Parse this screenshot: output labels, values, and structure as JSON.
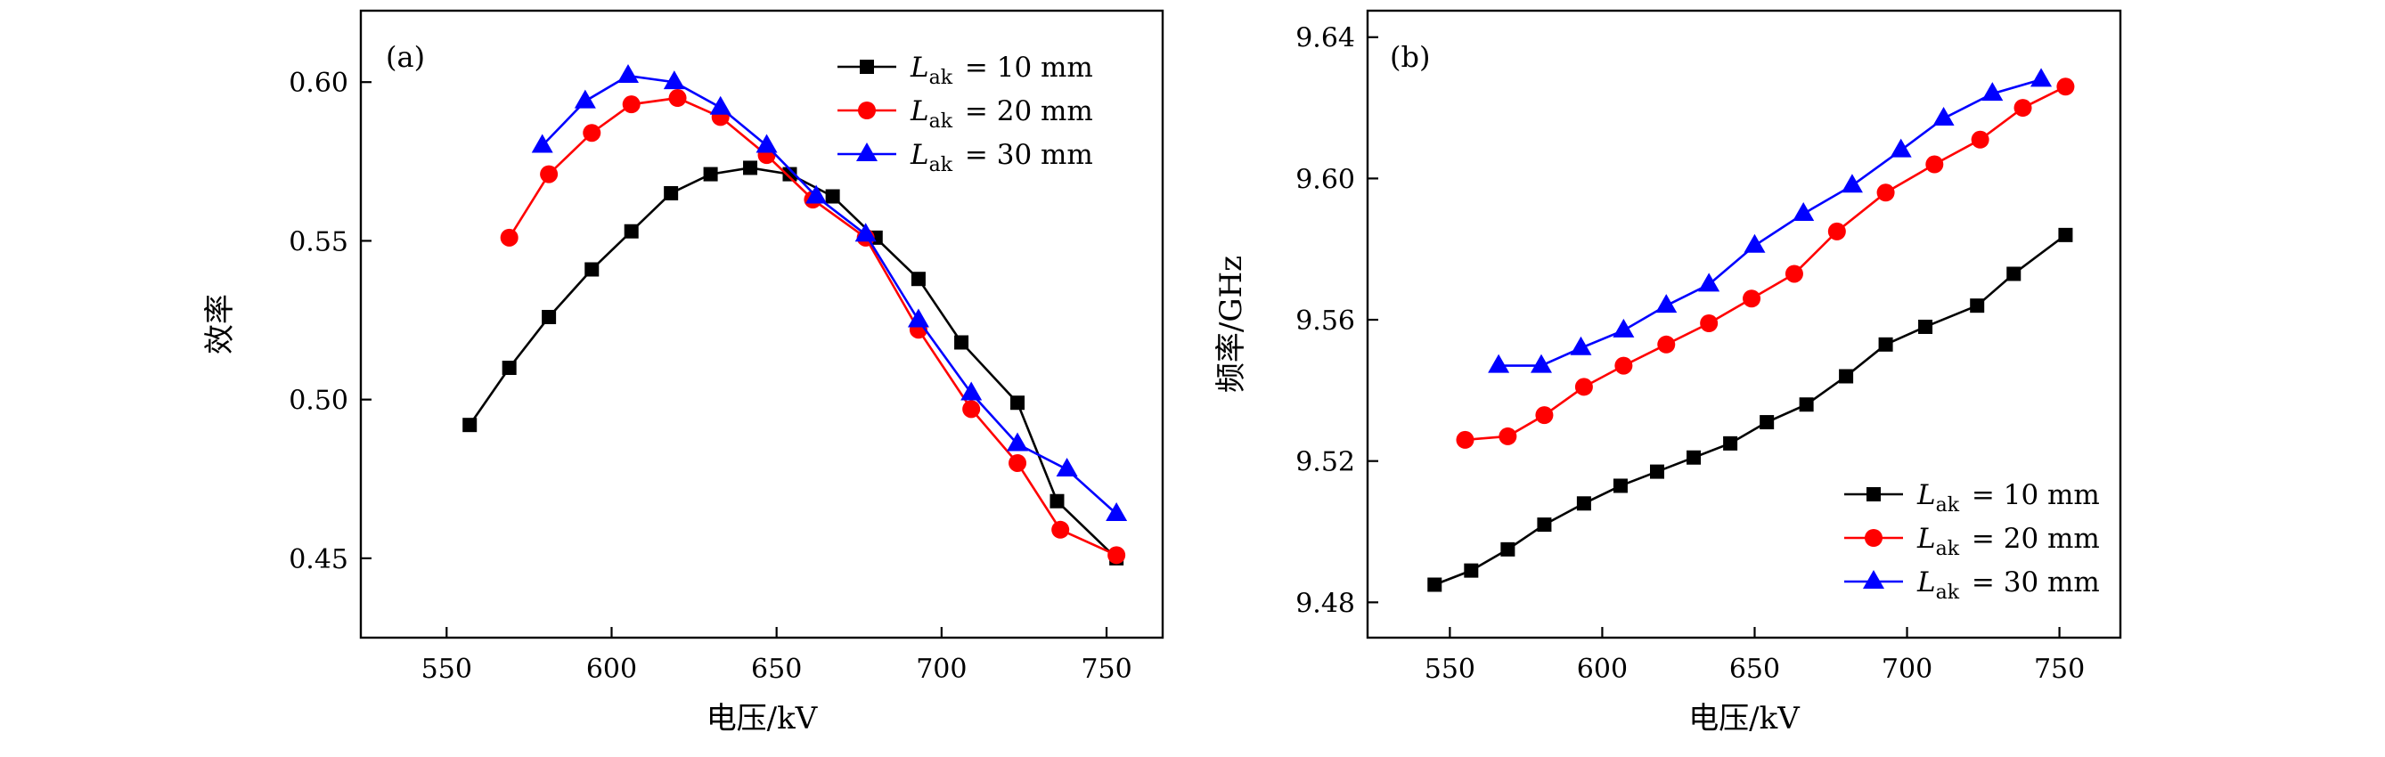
{
  "chart_data": [
    {
      "type": "line",
      "panel_tag": "(a)",
      "xlabel": "电压/kV",
      "ylabel": "效率",
      "xlim": [
        524,
        767
      ],
      "ylim": [
        0.425,
        0.6225
      ],
      "xticks": [
        550,
        600,
        650,
        700,
        750
      ],
      "yticks": [
        0.45,
        0.5,
        0.55,
        0.6
      ],
      "ytick_labels": [
        "0.45",
        "0.50",
        "0.55",
        "0.60"
      ],
      "grid": false,
      "legend_position": "top-right",
      "legend": [
        {
          "symbol": "L",
          "sub": "ak",
          "value": "10 mm"
        },
        {
          "symbol": "L",
          "sub": "ak",
          "value": "20 mm"
        },
        {
          "symbol": "L",
          "sub": "ak",
          "value": "30 mm"
        }
      ],
      "series": [
        {
          "color": "#000000",
          "marker": "square",
          "x": [
            557,
            569,
            581,
            594,
            606,
            618,
            630,
            642,
            654,
            667,
            680,
            693,
            706,
            723,
            735,
            753
          ],
          "y": [
            0.492,
            0.51,
            0.526,
            0.541,
            0.553,
            0.565,
            0.571,
            0.573,
            0.571,
            0.564,
            0.551,
            0.538,
            0.518,
            0.499,
            0.468,
            0.45
          ]
        },
        {
          "color": "#ff0000",
          "marker": "circle",
          "x": [
            569,
            581,
            594,
            606,
            620,
            633,
            647,
            661,
            677,
            693,
            709,
            723,
            736,
            753
          ],
          "y": [
            0.551,
            0.571,
            0.584,
            0.593,
            0.595,
            0.589,
            0.577,
            0.563,
            0.551,
            0.522,
            0.497,
            0.48,
            0.459,
            0.451
          ]
        },
        {
          "color": "#0000ff",
          "marker": "triangle",
          "x": [
            579,
            592,
            605,
            619,
            633,
            647,
            662,
            677,
            693,
            709,
            723,
            738,
            753
          ],
          "y": [
            0.58,
            0.594,
            0.602,
            0.6,
            0.592,
            0.58,
            0.564,
            0.552,
            0.525,
            0.502,
            0.486,
            0.478,
            0.464
          ]
        }
      ]
    },
    {
      "type": "line",
      "panel_tag": "(b)",
      "xlabel": "电压/kV",
      "ylabel": "频率/GHz",
      "xlim": [
        523,
        770
      ],
      "ylim": [
        9.47,
        9.6475
      ],
      "xticks": [
        550,
        600,
        650,
        700,
        750
      ],
      "yticks": [
        9.48,
        9.52,
        9.56,
        9.6,
        9.64
      ],
      "ytick_labels": [
        "9.48",
        "9.52",
        "9.56",
        "9.60",
        "9.64"
      ],
      "grid": false,
      "legend_position": "bottom-right",
      "legend": [
        {
          "symbol": "L",
          "sub": "ak",
          "value": "10 mm"
        },
        {
          "symbol": "L",
          "sub": "ak",
          "value": "20 mm"
        },
        {
          "symbol": "L",
          "sub": "ak",
          "value": "30 mm"
        }
      ],
      "series": [
        {
          "color": "#000000",
          "marker": "square",
          "x": [
            545,
            557,
            569,
            581,
            594,
            606,
            618,
            630,
            642,
            654,
            667,
            680,
            693,
            706,
            723,
            735,
            752
          ],
          "y": [
            9.485,
            9.489,
            9.495,
            9.502,
            9.508,
            9.513,
            9.517,
            9.521,
            9.525,
            9.531,
            9.536,
            9.544,
            9.553,
            9.558,
            9.564,
            9.573,
            9.584
          ]
        },
        {
          "color": "#ff0000",
          "marker": "circle",
          "x": [
            555,
            569,
            581,
            594,
            607,
            621,
            635,
            649,
            663,
            677,
            693,
            709,
            724,
            738,
            752
          ],
          "y": [
            9.526,
            9.527,
            9.533,
            9.541,
            9.547,
            9.553,
            9.559,
            9.566,
            9.573,
            9.585,
            9.596,
            9.604,
            9.611,
            9.62,
            9.626
          ]
        },
        {
          "color": "#0000ff",
          "marker": "triangle",
          "x": [
            566,
            580,
            593,
            607,
            621,
            635,
            650,
            666,
            682,
            698,
            712,
            728,
            744
          ],
          "y": [
            9.547,
            9.547,
            9.552,
            9.557,
            9.564,
            9.57,
            9.581,
            9.59,
            9.598,
            9.608,
            9.617,
            9.624,
            9.628
          ]
        }
      ]
    }
  ]
}
